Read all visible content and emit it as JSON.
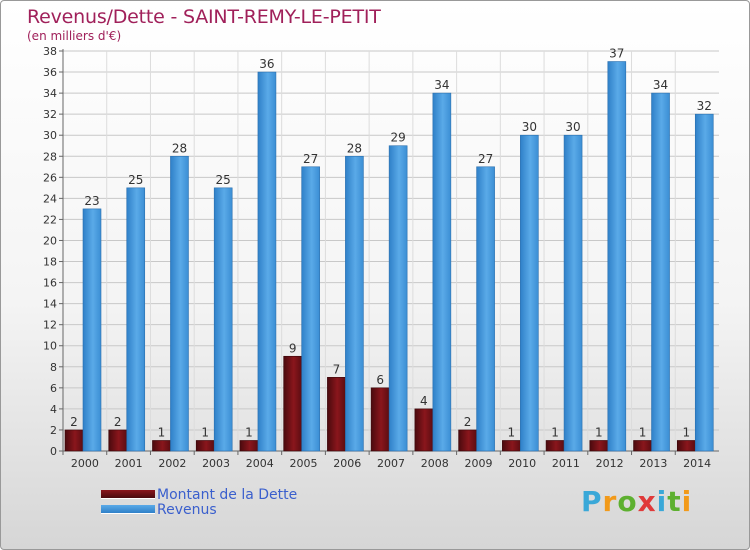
{
  "header": {
    "title": "Revenus/Dette - SAINT-REMY-LE-PETIT",
    "subtitle": "(en milliers d'€)"
  },
  "chart_data": {
    "type": "bar",
    "title": "Revenus/Dette - SAINT-REMY-LE-PETIT",
    "ylabel": "(en milliers d'€)",
    "xlabel": "",
    "categories": [
      "2000",
      "2001",
      "2002",
      "2003",
      "2004",
      "2005",
      "2006",
      "2007",
      "2008",
      "2009",
      "2010",
      "2011",
      "2012",
      "2013",
      "2014"
    ],
    "series": [
      {
        "name": "Montant de la Dette",
        "color": "#7a1218",
        "values": [
          2,
          2,
          1,
          1,
          1,
          9,
          7,
          6,
          4,
          2,
          1,
          1,
          1,
          1,
          1
        ]
      },
      {
        "name": "Revenus",
        "color": "#4fa0e3",
        "values": [
          23,
          25,
          28,
          25,
          36,
          27,
          28,
          29,
          34,
          27,
          30,
          30,
          37,
          34,
          32
        ]
      }
    ],
    "ylim": [
      0,
      38
    ],
    "yticks": [
      0,
      2,
      4,
      6,
      8,
      10,
      12,
      14,
      16,
      18,
      20,
      22,
      24,
      26,
      28,
      30,
      32,
      34,
      36,
      38
    ],
    "grid": true,
    "legend": "bottom-left"
  },
  "legend": {
    "items": [
      {
        "label": "Montant de la Dette",
        "color": "#7a1218"
      },
      {
        "label": "Revenus",
        "color": "#4fa0e3"
      }
    ]
  },
  "logo": {
    "letters": [
      "P",
      "r",
      "o",
      "x",
      "i",
      "t",
      "i"
    ],
    "colors": [
      "#3aa8d8",
      "#f29a1a",
      "#5db030",
      "#e03a3a",
      "#3aa8d8",
      "#5db030",
      "#f29a1a"
    ]
  }
}
